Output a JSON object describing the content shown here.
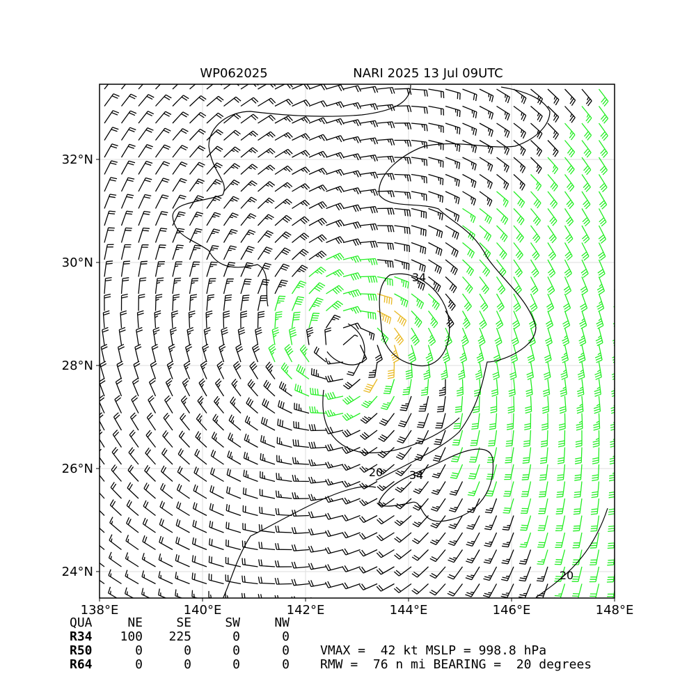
{
  "header": {
    "storm_id": "WP062025",
    "storm_time": "NARI 2025 13 Jul 09UTC"
  },
  "map": {
    "xlim": [
      138,
      148
    ],
    "ylim": [
      23.486,
      33.459
    ],
    "xticks": [
      {
        "value": 138,
        "label": "138°E"
      },
      {
        "value": 140,
        "label": "140°E"
      },
      {
        "value": 142,
        "label": "142°E"
      },
      {
        "value": 144,
        "label": "144°E"
      },
      {
        "value": 146,
        "label": "146°E"
      },
      {
        "value": 148,
        "label": "148°E"
      }
    ],
    "yticks": [
      {
        "value": 24,
        "label": "24°N"
      },
      {
        "value": 26,
        "label": "26°N"
      },
      {
        "value": 28,
        "label": "28°N"
      },
      {
        "value": 30,
        "label": "30°N"
      },
      {
        "value": 32,
        "label": "32°N"
      }
    ],
    "grid": true,
    "contour_labels": [
      34,
      34,
      20,
      20
    ]
  },
  "table": {
    "header": [
      "QUA",
      "NE",
      "SE",
      "SW",
      "NW"
    ],
    "rows": [
      [
        "R34",
        100,
        225,
        0,
        0
      ],
      [
        "R50",
        0,
        0,
        0,
        0
      ],
      [
        "R64",
        0,
        0,
        0,
        0
      ]
    ]
  },
  "info": [
    "VMAX =  42 kt MSLP = 998.8 hPa",
    "RMW =  76 n mi BEARING =  20 degrees"
  ]
}
